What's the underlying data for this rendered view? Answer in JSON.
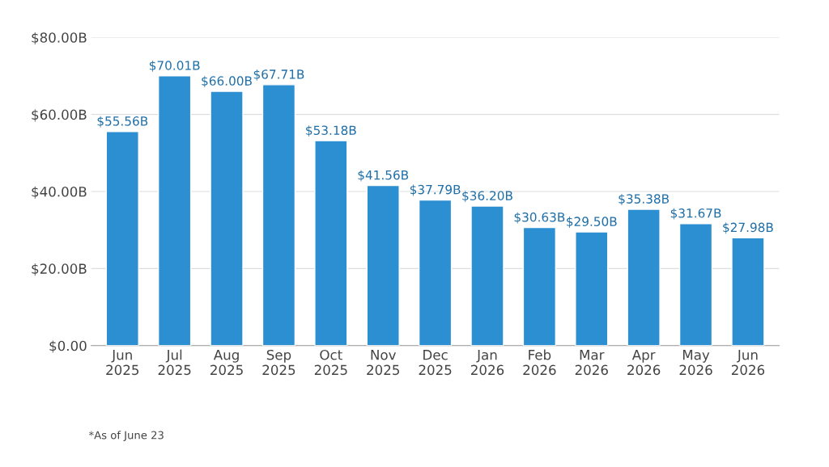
{
  "chart_data": {
    "type": "bar",
    "categories": [
      "Jun\n2025",
      "Jul\n2025",
      "Aug\n2025",
      "Sep\n2025",
      "Oct\n2025",
      "Nov\n2025",
      "Dec\n2025",
      "Jan\n2026",
      "Feb\n2026",
      "Mar\n2026",
      "Apr\n2026",
      "May\n2026",
      "Jun\n2026"
    ],
    "values": [
      55.56,
      70.01,
      66.0,
      67.71,
      53.18,
      41.56,
      37.79,
      36.2,
      30.63,
      29.5,
      35.38,
      31.67,
      27.98
    ],
    "value_labels": [
      "$55.56B",
      "$70.01B",
      "$66.00B",
      "$67.71B",
      "$53.18B",
      "$41.56B",
      "$37.79B",
      "$36.20B",
      "$30.63B",
      "$29.50B",
      "$35.38B",
      "$31.67B",
      "$27.98B"
    ],
    "color": "#2b8fd1",
    "ylim": [
      0,
      80
    ],
    "yticks": [
      {
        "value": 0,
        "label": "$0.00"
      },
      {
        "value": 20,
        "label": "$20.00B"
      },
      {
        "value": 40,
        "label": "$40.00B"
      },
      {
        "value": 60,
        "label": "$60.00B"
      },
      {
        "value": 80,
        "label": "$80.00B"
      }
    ],
    "grid": "y",
    "annotations": [
      "*As of June 23"
    ]
  }
}
